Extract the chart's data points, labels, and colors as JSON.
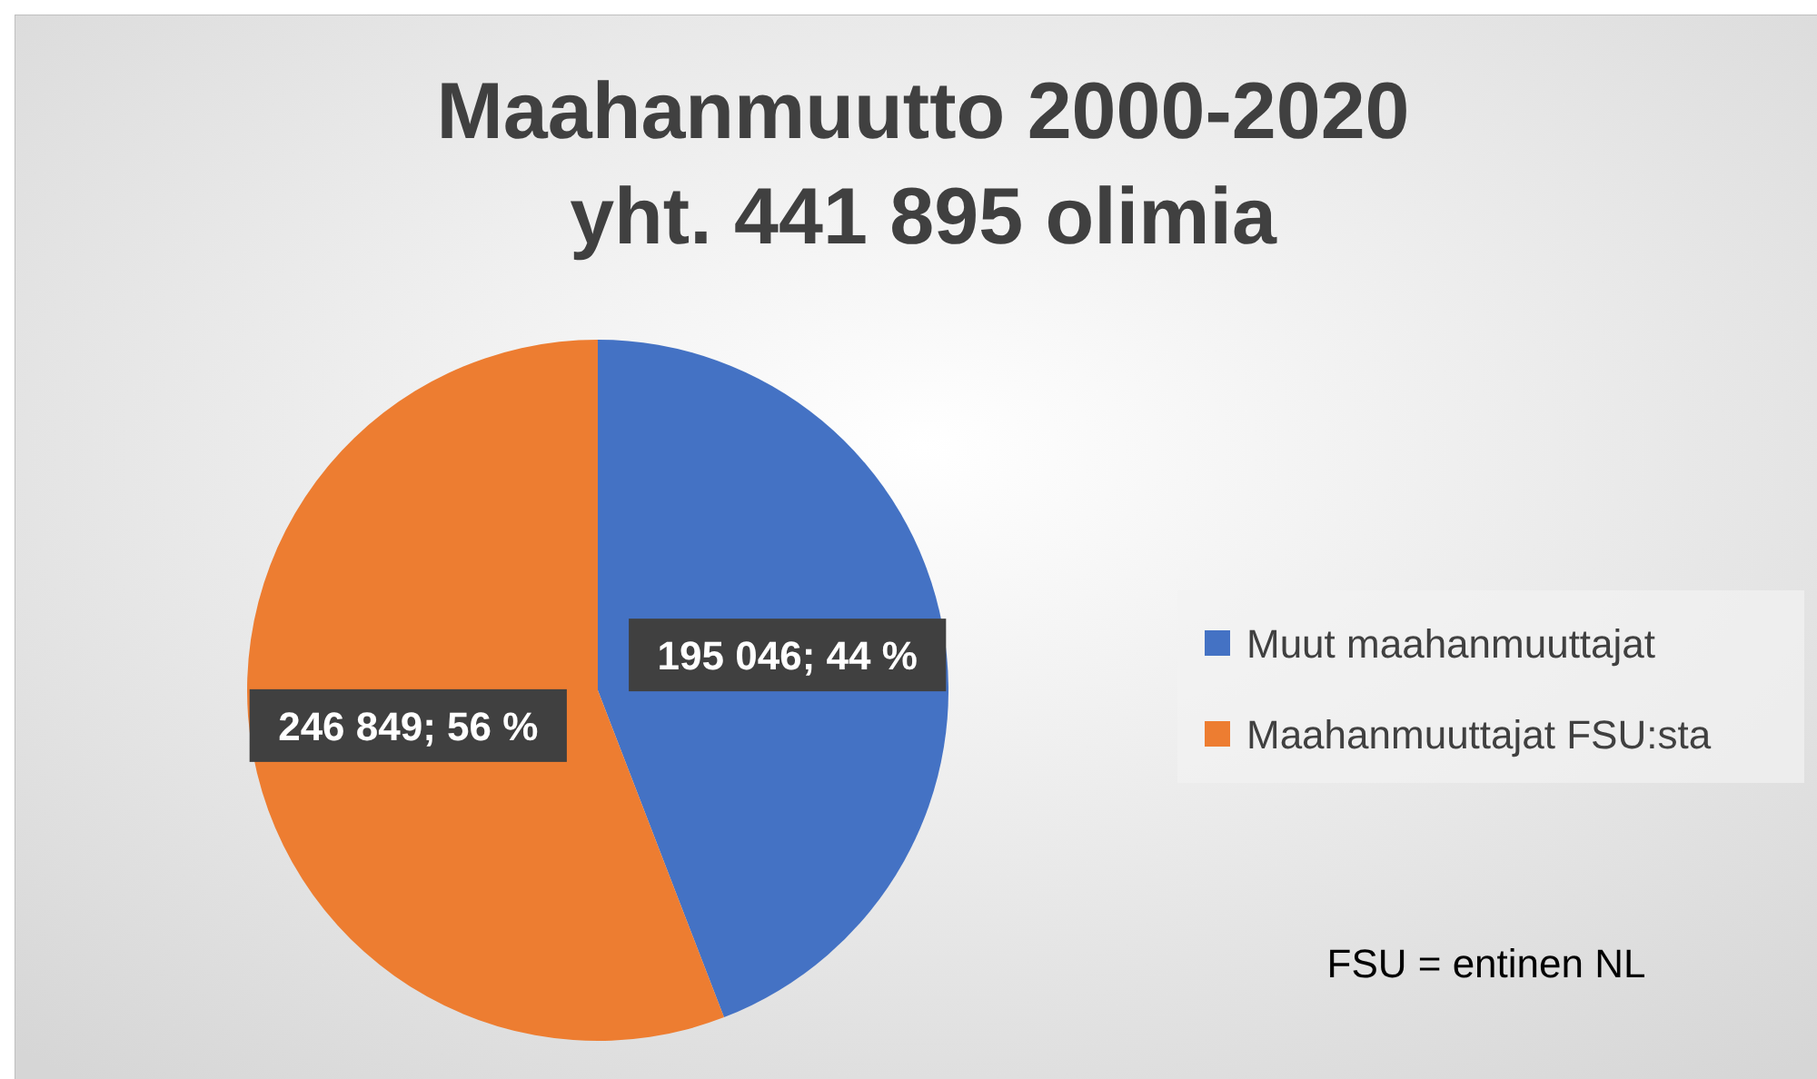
{
  "chart_data": {
    "type": "pie",
    "title": "Maahanmuutto 2000-2020\nyht. 441 895 olimia",
    "categories": [
      "Muut maahanmuuttajat",
      "Maahanmuuttajat FSU:sta"
    ],
    "values": [
      195046,
      246849
    ],
    "colors": [
      "#4472c4",
      "#ed7d31"
    ],
    "value_labels": [
      "195 046; 44 %",
      "246 849; 56 %"
    ],
    "legend": "right",
    "annotations": [
      "FSU = entinen NL"
    ]
  }
}
